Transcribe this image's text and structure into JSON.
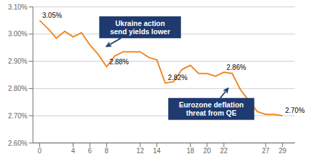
{
  "chart_data": {
    "type": "line",
    "x": [
      0,
      1,
      2,
      3,
      4,
      5,
      6,
      7,
      8,
      9,
      10,
      11,
      12,
      13,
      14,
      15,
      16,
      17,
      18,
      19,
      20,
      21,
      22,
      23,
      24,
      25,
      26,
      27,
      28,
      29
    ],
    "values": [
      3.05,
      3.02,
      2.985,
      3.01,
      2.99,
      3.005,
      2.96,
      2.925,
      2.88,
      2.92,
      2.935,
      2.935,
      2.935,
      2.915,
      2.905,
      2.82,
      2.825,
      2.87,
      2.885,
      2.855,
      2.855,
      2.845,
      2.86,
      2.855,
      2.795,
      2.755,
      2.715,
      2.705,
      2.705,
      2.7
    ],
    "color": "#F28520",
    "xlim": [
      -0.8,
      30.5
    ],
    "xticks": [
      0,
      4,
      6,
      8,
      12,
      14,
      18,
      20,
      22,
      27,
      29
    ],
    "ylim": [
      2.6,
      3.1
    ],
    "yticks": [
      {
        "value": 2.6,
        "label": "2.60%"
      },
      {
        "value": 2.7,
        "label": "2.70%"
      },
      {
        "value": 2.8,
        "label": "2.80%"
      },
      {
        "value": 2.9,
        "label": "2.90%"
      },
      {
        "value": 3.0,
        "label": "3.00%"
      },
      {
        "value": 3.1,
        "label": "3.10%"
      }
    ],
    "grid": true,
    "annotations": [
      {
        "text": "3.05%",
        "x": 0,
        "y": 3.05
      },
      {
        "text": "2.88%",
        "x": 8,
        "y": 2.88
      },
      {
        "text": "2.82%",
        "x": 15,
        "y": 2.82
      },
      {
        "text": "2.86%",
        "x": 22,
        "y": 2.86
      },
      {
        "text": "2.70%",
        "x": 29,
        "y": 2.7
      },
      {
        "text": "Ukraine action\nsend yields lower",
        "x": 12.0,
        "y": 3.025,
        "arrow_x": 8.0,
        "arrow_y": 2.955,
        "color": "#1F3A6E"
      },
      {
        "text": "Eurozone deflation\nthreat from QE",
        "x": 20.5,
        "y": 2.725,
        "arrow_x": 22.5,
        "arrow_y": 2.8,
        "color": "#1F3A6E"
      }
    ]
  }
}
